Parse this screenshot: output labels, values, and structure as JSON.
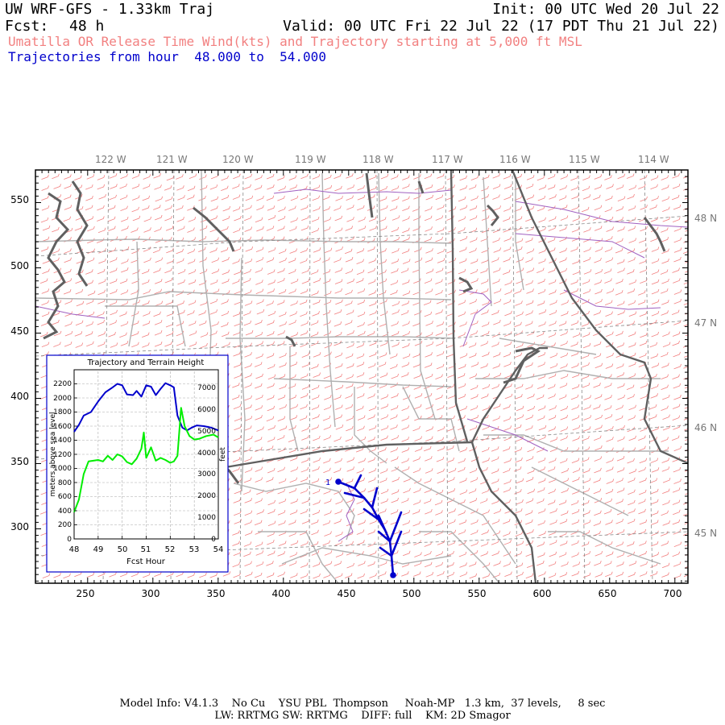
{
  "header": {
    "title": "UW WRF-GFS - 1.33km Traj",
    "init": "Init: 00 UTC Wed 20 Jul 22",
    "fcst_label": "Fcst:",
    "fcst_value": "48 h",
    "valid": "Valid: 00 UTC Fri 22 Jul 22 (17 PDT Thu 21 Jul 22)",
    "subtitle_release": "Umatilla OR Release Time Wind(kts) and Trajectory starting at 5,000 ft MSL",
    "subtitle_traj": "Trajectories from hour  48.000 to  54.000"
  },
  "colors": {
    "wind_barbs": "#f28080",
    "trajectory": "#0000cc",
    "terrain": "#00ee00",
    "counties": "#b0b0b0",
    "coast": "#606060",
    "outline": "#a060c0",
    "lat_lon": "#777777"
  },
  "map": {
    "top_lon_labels": [
      "122 W",
      "121 W",
      "120 W",
      "119 W",
      "118 W",
      "117 W",
      "116 W",
      "115 W",
      "114 W"
    ],
    "right_lat_labels": [
      "48 N",
      "47 N",
      "46 N",
      "45 N"
    ],
    "left_tick_labels": [
      "550",
      "500",
      "450",
      "400",
      "350",
      "300"
    ],
    "bottom_tick_labels": [
      "250",
      "300",
      "350",
      "400",
      "450",
      "500",
      "550",
      "600",
      "650",
      "700"
    ],
    "trajectory_start_marker": "1",
    "chart_data": {
      "type": "line",
      "title": "Trajectory and Terrain Height",
      "xlabel": "Fcst Hour",
      "ylabel_left": "meters above sea level",
      "ylabel_right": "feet",
      "xlim": [
        48,
        54
      ],
      "ylim_left": [
        0,
        2400
      ],
      "ylim_right": [
        0,
        7874
      ],
      "x_tick_labels": [
        "48",
        "49",
        "50",
        "51",
        "52",
        "53",
        "54"
      ],
      "y_tick_labels_left": [
        "0",
        "200",
        "400",
        "600",
        "800",
        "1000",
        "1200",
        "1400",
        "1600",
        "1800",
        "2000",
        "2200"
      ],
      "y_tick_labels_right": [
        "0",
        "1000",
        "2000",
        "3000",
        "4000",
        "5000",
        "6000",
        "7000"
      ],
      "series": [
        {
          "color": "#0000cc",
          "x": [
            48.0,
            48.2,
            48.4,
            48.7,
            49.0,
            49.3,
            49.6,
            49.8,
            50.0,
            50.2,
            50.45,
            50.6,
            50.8,
            51.0,
            51.2,
            51.4,
            51.6,
            51.8,
            52.0,
            52.15,
            52.3,
            52.5,
            52.7,
            52.9,
            53.1,
            53.4,
            53.7,
            54.0
          ],
          "y": [
            1520,
            1620,
            1750,
            1800,
            1950,
            2080,
            2150,
            2200,
            2180,
            2050,
            2040,
            2100,
            2020,
            2180,
            2160,
            2040,
            2130,
            2210,
            2180,
            2150,
            1750,
            1580,
            1540,
            1580,
            1610,
            1600,
            1580,
            1540
          ]
        },
        {
          "color": "#00ee00",
          "x": [
            48.0,
            48.2,
            48.4,
            48.6,
            48.8,
            49.0,
            49.2,
            49.4,
            49.6,
            49.8,
            50.0,
            50.2,
            50.4,
            50.6,
            50.8,
            50.9,
            51.0,
            51.2,
            51.4,
            51.6,
            51.8,
            52.0,
            52.15,
            52.3,
            52.45,
            52.6,
            52.8,
            53.0,
            53.2,
            53.5,
            53.8,
            54.0
          ],
          "y": [
            380,
            560,
            920,
            1100,
            1110,
            1120,
            1100,
            1180,
            1120,
            1200,
            1170,
            1090,
            1060,
            1140,
            1280,
            1510,
            1150,
            1300,
            1110,
            1150,
            1120,
            1080,
            1100,
            1180,
            1860,
            1600,
            1460,
            1410,
            1420,
            1460,
            1480,
            1440
          ]
        }
      ]
    }
  },
  "footer": {
    "line1": "Model Info: V4.1.3    No Cu    YSU PBL  Thompson     Noah-MP   1.3 km,  37 levels,     8 sec",
    "line2": "LW: RRTMG SW: RRTMG    DIFF: full    KM: 2D Smagor"
  }
}
